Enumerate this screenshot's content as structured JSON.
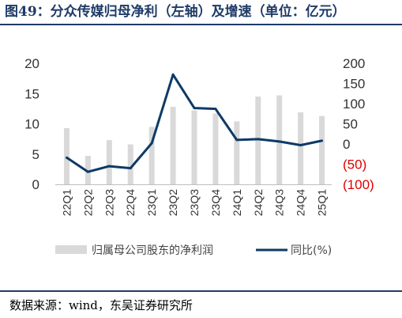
{
  "header": {
    "title": "图49：分众传媒归母净利（左轴）及增速（单位：亿元）"
  },
  "footer": {
    "source": "数据来源：wind，东吴证券研究所"
  },
  "chart_data": {
    "type": "bar",
    "title": "图49：分众传媒归母净利（左轴）及增速（单位：亿元）",
    "categories": [
      "22Q1",
      "22Q2",
      "22Q3",
      "22Q4",
      "23Q1",
      "23Q2",
      "23Q3",
      "23Q4",
      "24Q1",
      "24Q2",
      "24Q3",
      "24Q4",
      "25Q1"
    ],
    "series": [
      {
        "name": "归属母公司股东的净利润",
        "type": "bar",
        "axis": "left",
        "color": "#d9d9d9",
        "values": [
          9.3,
          4.7,
          7.3,
          6.6,
          9.5,
          12.8,
          12.2,
          11.7,
          10.4,
          14.5,
          14.7,
          11.9,
          11.3
        ]
      },
      {
        "name": "同比(%)",
        "type": "line",
        "axis": "right",
        "color": "#0d3a66",
        "values": [
          -34,
          -69,
          -55,
          -60,
          2,
          172,
          89,
          87,
          10,
          12,
          6,
          -3,
          8
        ]
      }
    ],
    "y_left": {
      "min": 0,
      "max": 20,
      "ticks": [
        "0",
        "5",
        "10",
        "15",
        "20"
      ],
      "tick_values": [
        0,
        5,
        10,
        15,
        20
      ]
    },
    "y_right": {
      "min": -100,
      "max": 200,
      "ticks": [
        "(100)",
        "(50)",
        "0",
        "50",
        "100",
        "150",
        "200"
      ],
      "tick_values": [
        -100,
        -50,
        0,
        50,
        100,
        150,
        200
      ]
    },
    "grid": false,
    "legend": "bottom",
    "colors": {
      "negative_tick": "#e00000",
      "line": "#0d3a66",
      "bar": "#d9d9d9",
      "title": "#1f3b68"
    }
  }
}
